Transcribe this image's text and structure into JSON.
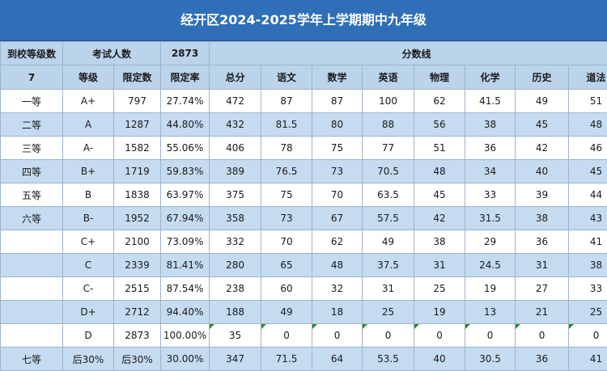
{
  "title": "经开区2024-2025学年上学期期中九年级",
  "header1": {
    "c1": "到校等级数",
    "c2": "考试人数",
    "c3": "2873",
    "c4": "分数线"
  },
  "header2": [
    "7",
    "等级",
    "限定数",
    "限定率",
    "总分",
    "语文",
    "数学",
    "英语",
    "物理",
    "化学",
    "历史",
    "道法"
  ],
  "rows": [
    [
      "一等",
      "A+",
      "797",
      "27.74%",
      "472",
      "87",
      "87",
      "100",
      "62",
      "41.5",
      "49",
      "51"
    ],
    [
      "二等",
      "A",
      "1287",
      "44.80%",
      "432",
      "81.5",
      "80",
      "88",
      "56",
      "38",
      "45",
      "48"
    ],
    [
      "三等",
      "A-",
      "1582",
      "55.06%",
      "406",
      "78",
      "75",
      "77",
      "51",
      "36",
      "42",
      "46"
    ],
    [
      "四等",
      "B+",
      "1719",
      "59.83%",
      "389",
      "76.5",
      "73",
      "70.5",
      "48",
      "34",
      "40",
      "45"
    ],
    [
      "五等",
      "B",
      "1838",
      "63.97%",
      "375",
      "75",
      "70",
      "63.5",
      "45",
      "33",
      "39",
      "44"
    ],
    [
      "六等",
      "B-",
      "1952",
      "67.94%",
      "358",
      "73",
      "67",
      "57.5",
      "42",
      "31.5",
      "38",
      "43"
    ],
    [
      "",
      "C+",
      "2100",
      "73.09%",
      "332",
      "70",
      "62",
      "49",
      "38",
      "29",
      "36",
      "41"
    ],
    [
      "",
      "C",
      "2339",
      "81.41%",
      "280",
      "65",
      "48",
      "37.5",
      "31",
      "24.5",
      "31",
      "38"
    ],
    [
      "",
      "C-",
      "2515",
      "87.54%",
      "238",
      "60",
      "32",
      "31",
      "25",
      "19",
      "27",
      "33"
    ],
    [
      "",
      "D+",
      "2712",
      "94.40%",
      "188",
      "49",
      "18",
      "25",
      "19",
      "13",
      "21",
      "25"
    ],
    [
      "",
      "D",
      "2873",
      "100.00%",
      "35",
      "0",
      "0",
      "0",
      "0",
      "0",
      "0",
      "0"
    ],
    [
      "七等",
      "后30%",
      "后30%",
      "30.00%",
      "347",
      "71.5",
      "64",
      "53.5",
      "40",
      "30.5",
      "36",
      "41"
    ]
  ]
}
